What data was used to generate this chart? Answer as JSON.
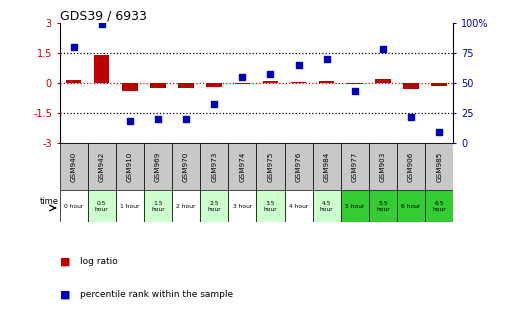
{
  "title": "GDS39 / 6933",
  "samples": [
    "GSM940",
    "GSM942",
    "GSM910",
    "GSM969",
    "GSM970",
    "GSM973",
    "GSM974",
    "GSM975",
    "GSM976",
    "GSM984",
    "GSM977",
    "GSM903",
    "GSM906",
    "GSM985"
  ],
  "time_labels": [
    "0 hour",
    "0.5\nhour",
    "1 hour",
    "1.5\nhour",
    "2 hour",
    "2.5\nhour",
    "3 hour",
    "3.5\nhour",
    "4 hour",
    "4.5\nhour",
    "5 hour",
    "5.5\nhour",
    "6 hour",
    "6.5\nhour"
  ],
  "log_ratio": [
    0.15,
    1.38,
    -0.42,
    -0.28,
    -0.27,
    -0.22,
    -0.04,
    0.08,
    0.06,
    0.08,
    -0.05,
    0.17,
    -0.32,
    -0.18
  ],
  "percentile": [
    80,
    99,
    18,
    20,
    20,
    32,
    55,
    57,
    65,
    70,
    43,
    78,
    21,
    9
  ],
  "ylim_left": [
    -3,
    3
  ],
  "ylim_right": [
    0,
    100
  ],
  "bar_color": "#bb0000",
  "dot_color": "#0000bb",
  "zero_line_color": "#cc0000",
  "time_bg_colors": [
    "#ffffff",
    "#ccffcc",
    "#ffffff",
    "#ccffcc",
    "#ffffff",
    "#ccffcc",
    "#ffffff",
    "#ccffcc",
    "#ffffff",
    "#ccffcc",
    "#33cc33",
    "#33cc33",
    "#33cc33",
    "#33cc33"
  ],
  "sample_bg_color": "#c8c8c8",
  "legend_bar_color": "#bb0000",
  "legend_dot_color": "#0000bb"
}
